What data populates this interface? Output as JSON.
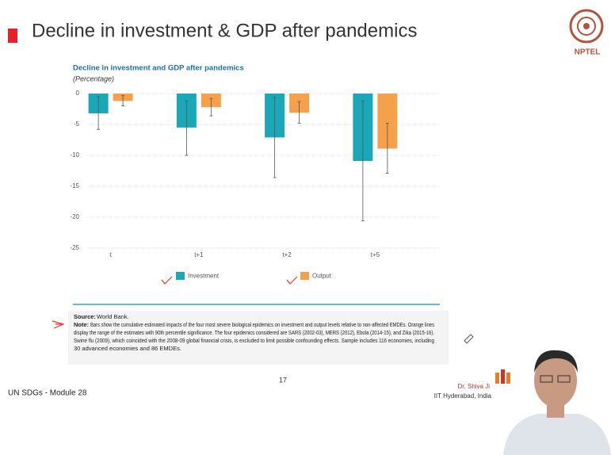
{
  "slide_title": "Decline in investment & GDP after pandemics",
  "logo_text": "NPTEL",
  "chart_data": {
    "type": "bar",
    "title": "Decline in investment and GDP after pandemics",
    "subtitle": "(Percentage)",
    "categories": [
      "t",
      "t+1",
      "t+2",
      "t+5"
    ],
    "series": [
      {
        "name": "Investment",
        "color": "#1aa7b8",
        "values": [
          -3.2,
          -5.5,
          -7.1,
          -10.9
        ],
        "range_high": [
          -0.5,
          -1.2,
          -0.6,
          -1.2
        ],
        "range_low": [
          -5.8,
          -10,
          -13.6,
          -20.6
        ]
      },
      {
        "name": "Output",
        "color": "#f5a04b",
        "values": [
          -1.2,
          -2.2,
          -3.1,
          -8.9
        ],
        "range_high": [
          -0.3,
          -0.8,
          -1.3,
          -4.8
        ],
        "range_low": [
          -2.0,
          -3.6,
          -4.8,
          -12.9
        ]
      }
    ],
    "ylim": [
      -25,
      0
    ],
    "yticks": [
      0,
      -5,
      -10,
      -15,
      -20,
      -25
    ],
    "grid": true
  },
  "notes": {
    "source_label": "Source:",
    "source": "World Bank.",
    "note_label": "Note:",
    "note_lines": [
      "Bars show the cumulative estimated impacts of the four most severe biological epidemics on investment and output levels relative to non-affected EMDEs. Orange lines",
      "display the range of the estimates with 90th percentile significance. The four epidemics considered are SARS (2002-03), MERS (2012), Ebola (2014-15), and Zika (2015-16).",
      "Swine flu (2009), which coincided with the 2008-09 global financial crisis, is excluded to limit possible confounding effects. Sample includes 116 economies, including",
      "30 advanced economies and 86 EMDEs."
    ]
  },
  "footer": {
    "page_number": "17",
    "module": "UN SDGs - Module 28",
    "presenter": "Dr. Shiva Ji",
    "affiliation": "IIT Hyderabad, India"
  }
}
